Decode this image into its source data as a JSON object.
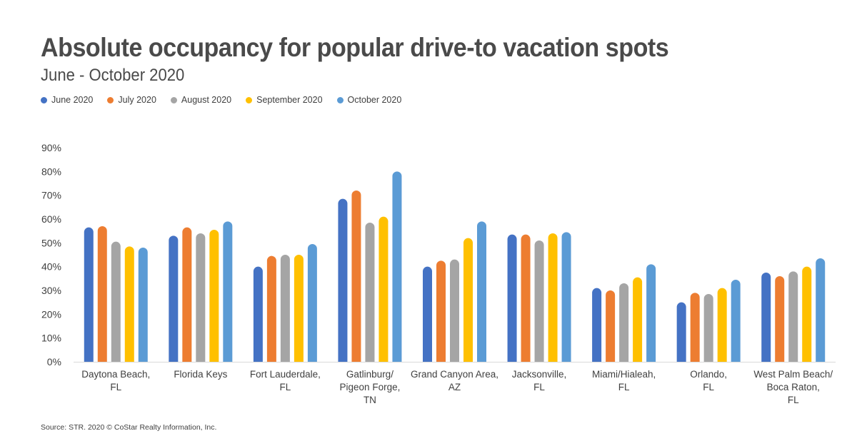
{
  "chart_data": {
    "type": "bar",
    "title": "Absolute occupancy for popular drive-to vacation spots",
    "subtitle": "June - October 2020",
    "categories": [
      [
        "Daytona Beach,",
        "FL"
      ],
      [
        "Florida Keys"
      ],
      [
        "Fort Lauderdale,",
        "FL"
      ],
      [
        "Gatlinburg/",
        "Pigeon Forge,",
        "TN"
      ],
      [
        "Grand Canyon Area,",
        "AZ"
      ],
      [
        "Jacksonville,",
        "FL"
      ],
      [
        "Miami/Hialeah,",
        "FL"
      ],
      [
        "Orlando,",
        "FL"
      ],
      [
        "West Palm Beach/",
        "Boca Raton,",
        "FL"
      ]
    ],
    "series": [
      {
        "name": "June 2020",
        "color": "#4472c4",
        "values": [
          56.5,
          53,
          40,
          68.5,
          40,
          53.5,
          31,
          25,
          37.5
        ]
      },
      {
        "name": "July 2020",
        "color": "#ed7d31",
        "values": [
          57,
          56.5,
          44.5,
          72,
          42.5,
          53.5,
          30,
          29,
          36
        ]
      },
      {
        "name": "August 2020",
        "color": "#a5a5a5",
        "values": [
          50.5,
          54,
          45,
          58.5,
          43,
          51,
          33,
          28.5,
          38
        ]
      },
      {
        "name": "September 2020",
        "color": "#ffc000",
        "values": [
          48.5,
          55.5,
          45,
          61,
          52,
          54,
          35.5,
          31,
          40
        ]
      },
      {
        "name": "October 2020",
        "color": "#5b9bd5",
        "values": [
          48,
          59,
          49.5,
          80,
          59,
          54.5,
          41,
          34.5,
          43.5
        ]
      }
    ],
    "ylim": [
      0,
      90
    ],
    "yticks": [
      "0%",
      "10%",
      "20%",
      "30%",
      "40%",
      "50%",
      "60%",
      "70%",
      "80%",
      "90%"
    ],
    "xlabel": "",
    "ylabel": "",
    "grid": false,
    "legend_position": "top-left"
  },
  "source": "Source: STR. 2020 © CoStar Realty Information, Inc."
}
